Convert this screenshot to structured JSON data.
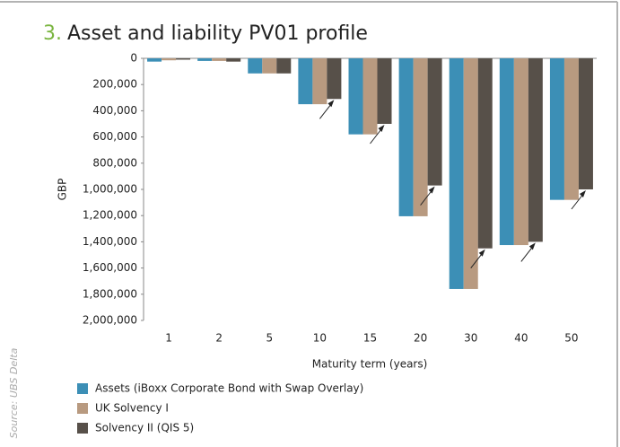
{
  "chart_data": {
    "type": "bar",
    "number": "3.",
    "title": "Asset and liability PV01 profile",
    "source": "Source: UBS Delta",
    "y_label": "GBP",
    "x_label": "Maturity term (years)",
    "categories": [
      "1",
      "2",
      "5",
      "10",
      "15",
      "20",
      "30",
      "40",
      "50"
    ],
    "series": [
      {
        "name": "Assets (iBoxx Corporate Bond with Swap Overlay)",
        "color": "#3c8fb6",
        "values": [
          25000,
          20000,
          115000,
          350000,
          580000,
          1205000,
          1760000,
          1425000,
          1080000
        ]
      },
      {
        "name": "UK Solvency I",
        "color": "#b89a80",
        "values": [
          15000,
          20000,
          115000,
          350000,
          580000,
          1205000,
          1760000,
          1425000,
          1080000
        ]
      },
      {
        "name": "Solvency II (QIS 5)",
        "color": "#575049",
        "values": [
          10000,
          25000,
          115000,
          310000,
          500000,
          970000,
          1450000,
          1400000,
          1000000
        ]
      }
    ],
    "ylim": [
      0,
      2000000
    ],
    "y_inverted": true,
    "yticks": [
      0,
      {
        "value": 200000,
        "label": "200,000"
      },
      {
        "value": 400000,
        "label": "400,000"
      },
      {
        "value": 600000,
        "label": "600,000"
      },
      {
        "value": 800000,
        "label": "800,000"
      },
      {
        "value": 1000000,
        "label": "1,000,000"
      },
      {
        "value": 1200000,
        "label": "1,200,000"
      },
      {
        "value": 1400000,
        "label": "1,400,000"
      },
      {
        "value": 1600000,
        "label": "1,600,000"
      },
      {
        "value": 1800000,
        "label": "1,800,000"
      },
      {
        "value": 2000000,
        "label": "2,000,000"
      }
    ],
    "grid": false
  }
}
